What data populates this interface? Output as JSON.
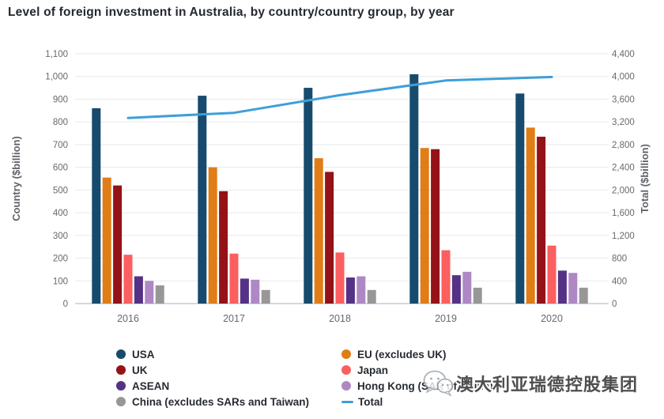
{
  "header": {
    "title": "Level of foreign investment in Australia, by country/country group, by year"
  },
  "chart_data": {
    "type": "bar",
    "title": "Level of foreign investment in Australia, by country/country group, by year",
    "categories": [
      "2016",
      "2017",
      "2018",
      "2019",
      "2020"
    ],
    "series": [
      {
        "name": "USA",
        "color": "#164B6E",
        "values": [
          860,
          915,
          950,
          1010,
          925
        ]
      },
      {
        "name": "EU (excludes UK)",
        "color": "#E07D16",
        "values": [
          555,
          600,
          640,
          685,
          775
        ]
      },
      {
        "name": "UK",
        "color": "#941218",
        "values": [
          520,
          495,
          580,
          680,
          735
        ]
      },
      {
        "name": "Japan",
        "color": "#FB5F5F",
        "values": [
          215,
          220,
          225,
          235,
          255
        ]
      },
      {
        "name": "ASEAN",
        "color": "#553285",
        "values": [
          120,
          110,
          115,
          125,
          145
        ]
      },
      {
        "name": "Hong Kong (SAR of China)",
        "color": "#AE88C4",
        "values": [
          100,
          105,
          120,
          140,
          135
        ]
      },
      {
        "name": "China (excludes SARs and Taiwan)",
        "color": "#979797",
        "values": [
          80,
          60,
          60,
          70,
          70
        ]
      }
    ],
    "line_series": {
      "name": "Total",
      "color": "#3E9FD9",
      "axis": "right",
      "values": [
        3270,
        3360,
        3670,
        3930,
        3990
      ]
    },
    "left_axis": {
      "label": "Country ($billion)",
      "min": 0,
      "max": 1100,
      "step": 100,
      "ticks": [
        "0",
        "100",
        "200",
        "300",
        "400",
        "500",
        "600",
        "700",
        "800",
        "900",
        "1,000",
        "1,100"
      ]
    },
    "right_axis": {
      "label": "Total ($billion)",
      "min": 0,
      "max": 4400,
      "step": 400,
      "ticks": [
        "0",
        "400",
        "800",
        "1,200",
        "1,600",
        "2,000",
        "2,400",
        "2,800",
        "3,200",
        "3,600",
        "4,000",
        "4,400"
      ]
    },
    "grid": true,
    "legend_position": "bottom"
  },
  "legend": {
    "columns": [
      [
        {
          "label": "USA",
          "color": "#164B6E",
          "marker": "circle"
        },
        {
          "label": "UK",
          "color": "#941218",
          "marker": "circle"
        },
        {
          "label": "ASEAN",
          "color": "#553285",
          "marker": "circle"
        },
        {
          "label": "China (excludes SARs and Taiwan)",
          "color": "#979797",
          "marker": "circle"
        }
      ],
      [
        {
          "label": "EU (excludes UK)",
          "color": "#E07D16",
          "marker": "circle"
        },
        {
          "label": "Japan",
          "color": "#FB5F5F",
          "marker": "circle"
        },
        {
          "label": "Hong Kong (SAR of China)",
          "color": "#AE88C4",
          "marker": "circle"
        },
        {
          "label": "Total",
          "color": "#3E9FD9",
          "marker": "line"
        }
      ]
    ]
  },
  "watermark": {
    "icon": "wechat-icon",
    "text": "澳大利亚瑞德控股集团"
  },
  "colors": {
    "grid": "#E9E9E9",
    "axis_line": "#BBCFDF",
    "tick_text": "#68696B",
    "axis_title": "#5F6368",
    "x_label": "#66696E",
    "title_text": "#24292F"
  }
}
